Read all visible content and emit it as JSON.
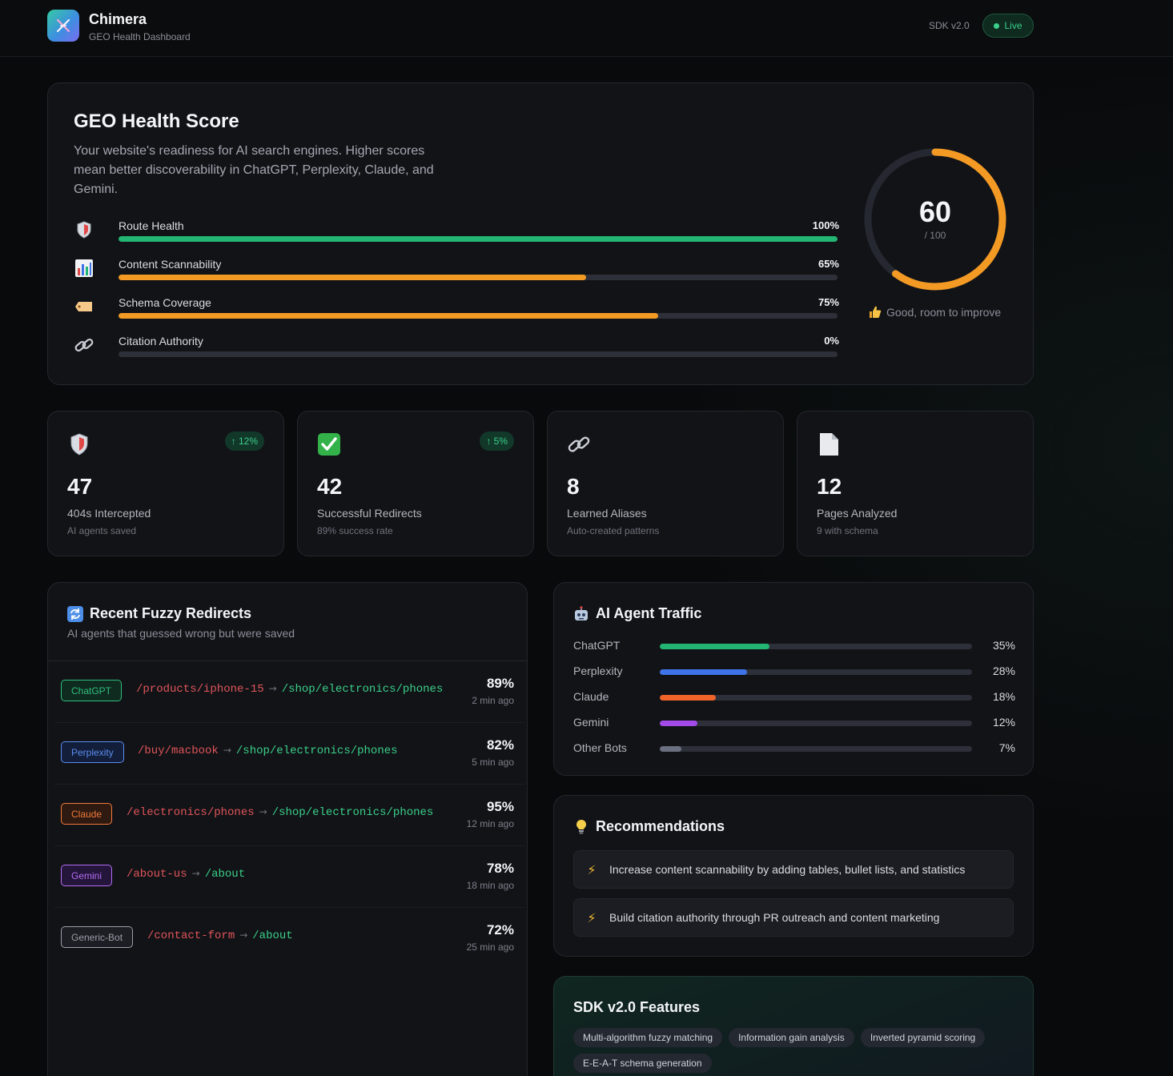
{
  "header": {
    "app_name": "Chimera",
    "subtitle": "GEO Health Dashboard",
    "sdk_version": "SDK v2.0",
    "status": "Live"
  },
  "geo_score": {
    "title": "GEO Health Score",
    "description": "Your website's readiness for AI search engines. Higher scores mean better discoverability in ChatGPT, Perplexity, Claude, and Gemini.",
    "score": "60",
    "score_value": 60,
    "score_max": "/ 100",
    "status": "Good, room to improve",
    "gauge_color": "#f39a24",
    "metrics": [
      {
        "label": "Route Health",
        "value": "100%",
        "percent": 100,
        "color": "#22b573",
        "icon": "shield-icon"
      },
      {
        "label": "Content Scannability",
        "value": "65%",
        "percent": 65,
        "color": "#f39a24",
        "icon": "bar-chart-icon"
      },
      {
        "label": "Schema Coverage",
        "value": "75%",
        "percent": 75,
        "color": "#f39a24",
        "icon": "tag-icon"
      },
      {
        "label": "Citation Authority",
        "value": "0%",
        "percent": 0,
        "color": "#e0555a",
        "icon": "link-icon"
      }
    ]
  },
  "stats": [
    {
      "value": "47",
      "label": "404s Intercepted",
      "sub": "AI agents saved",
      "badge": "↑ 12%",
      "icon": "shield-icon"
    },
    {
      "value": "42",
      "label": "Successful Redirects",
      "sub": "89% success rate",
      "badge": "↑ 5%",
      "icon": "check-icon"
    },
    {
      "value": "8",
      "label": "Learned Aliases",
      "sub": "Auto-created patterns",
      "badge": "",
      "icon": "link-icon"
    },
    {
      "value": "12",
      "label": "Pages Analyzed",
      "sub": "9 with schema",
      "badge": "",
      "icon": "document-icon"
    }
  ],
  "redirects": {
    "title": "Recent Fuzzy Redirects",
    "subtitle": "AI agents that guessed wrong but were saved",
    "icon": "refresh-icon",
    "items": [
      {
        "agent": "ChatGPT",
        "from": "/products/iphone-15",
        "arrow": "→",
        "to": "/shop/electronics/phones",
        "match": "89%",
        "time": "2 min ago",
        "color": "#2fbf7f",
        "bg": "#0f2a1f"
      },
      {
        "agent": "Perplexity",
        "from": "/buy/macbook",
        "arrow": "→",
        "to": "/shop/electronics/phones",
        "match": "82%",
        "time": "5 min ago",
        "color": "#5b8cf0",
        "bg": "#131e3a"
      },
      {
        "agent": "Claude",
        "from": "/electronics/phones",
        "arrow": "→",
        "to": "/shop/electronics/phones",
        "match": "95%",
        "time": "12 min ago",
        "color": "#f07a3c",
        "bg": "#2e1a10"
      },
      {
        "agent": "Gemini",
        "from": "/about-us",
        "arrow": "→",
        "to": "/about",
        "match": "78%",
        "time": "18 min ago",
        "color": "#b36cf0",
        "bg": "#24153a"
      },
      {
        "agent": "Generic-Bot",
        "from": "/contact-form",
        "arrow": "→",
        "to": "/about",
        "match": "72%",
        "time": "25 min ago",
        "color": "#9a9ea7",
        "bg": "#1c1e23"
      }
    ]
  },
  "traffic": {
    "title": "AI Agent Traffic",
    "icon": "robot-icon",
    "items": [
      {
        "name": "ChatGPT",
        "value": "35%",
        "percent": 35,
        "color": "#22b573"
      },
      {
        "name": "Perplexity",
        "value": "28%",
        "percent": 28,
        "color": "#3f74e8"
      },
      {
        "name": "Claude",
        "value": "18%",
        "percent": 18,
        "color": "#f0642a"
      },
      {
        "name": "Gemini",
        "value": "12%",
        "percent": 12,
        "color": "#a24be8"
      },
      {
        "name": "Other Bots",
        "value": "7%",
        "percent": 7,
        "color": "#6b7080"
      }
    ]
  },
  "recommendations": {
    "title": "Recommendations",
    "icon": "lightbulb-icon",
    "items": [
      {
        "icon": "bolt-icon",
        "text": "Increase content scannability by adding tables, bullet lists, and statistics"
      },
      {
        "icon": "bolt-icon",
        "text": "Build citation authority through PR outreach and content marketing"
      }
    ]
  },
  "features": {
    "title": "SDK v2.0 Features",
    "chips": [
      "Multi-algorithm fuzzy matching",
      "Information gain analysis",
      "Inverted pyramid scoring",
      "E-E-A-T schema generation"
    ]
  }
}
